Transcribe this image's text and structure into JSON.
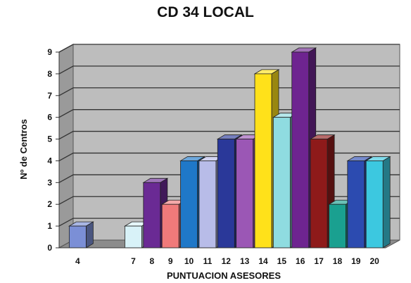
{
  "chart_data": {
    "type": "bar",
    "title": "CD 34 LOCAL",
    "xlabel": "PUNTUACION ASESORES",
    "ylabel": "Nº de Centros",
    "ylim": [
      0,
      9
    ],
    "yticks": [
      0,
      1,
      2,
      3,
      4,
      5,
      6,
      7,
      8,
      9
    ],
    "grid": true,
    "categories": [
      "4",
      "7",
      "8",
      "9",
      "10",
      "11",
      "12",
      "13",
      "14",
      "15",
      "16",
      "17",
      "18",
      "19",
      "20"
    ],
    "values": [
      1,
      1,
      3,
      2,
      4,
      4,
      5,
      5,
      8,
      6,
      9,
      5,
      2,
      4,
      4
    ],
    "bar_colors": [
      "#7B8FD6",
      "#D8F2F8",
      "#6A2A94",
      "#F07A7A",
      "#1F78C8",
      "#B8BCE8",
      "#2A3899",
      "#9B57B5",
      "#FFE11A",
      "#8FDCE0",
      "#6E2490",
      "#8E1A1A",
      "#1AA090",
      "#2C4BB0",
      "#3CC8E0"
    ],
    "plot_color": "#BDBDBD"
  }
}
